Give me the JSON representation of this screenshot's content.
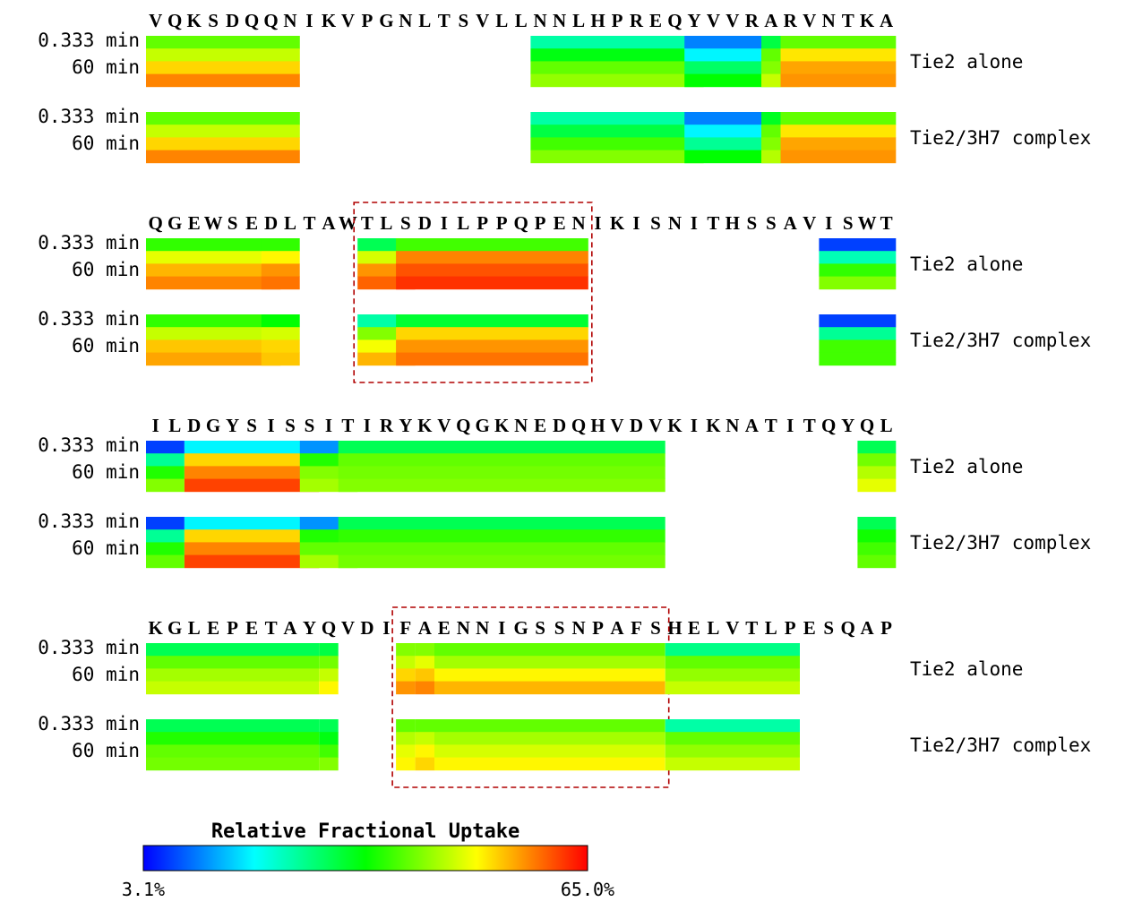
{
  "chart_data": {
    "type": "heatmap",
    "title": "",
    "colorbar": {
      "label": "Relative Fractional Uptake",
      "min_label": "3.1%",
      "max_label": "65.0%",
      "min": 3.1,
      "max": 65.0,
      "stops": [
        "#0000ff",
        "#00ffff",
        "#00ff00",
        "#ffff00",
        "#ff0000"
      ]
    },
    "time_labels": [
      "0.333 min",
      "60 min"
    ],
    "panels": [
      {
        "sequence": "VQKSDQQNIKVPGNLTSVLLNNLHPREQYVVRARVNTKA",
        "highlight": null,
        "states": [
          {
            "label": "Tie2 alone",
            "peptides": [
              {
                "start": 0,
                "end": 7,
                "values": [
                  40,
                  46,
                  52,
                  57
                ]
              },
              {
                "start": 20,
                "end": 28,
                "values": [
                  24,
                  33,
                  40,
                  43
                ]
              },
              {
                "start": 28,
                "end": 32,
                "values": [
                  11,
                  18,
                  28,
                  34
                ]
              },
              {
                "start": 32,
                "end": 33,
                "values": [
                  30,
                  40,
                  42,
                  46
                ]
              },
              {
                "start": 33,
                "end": 38,
                "values": [
                  40,
                  51,
                  55,
                  56
                ]
              }
            ]
          },
          {
            "label": "Tie2/3H7 complex",
            "peptides": [
              {
                "start": 0,
                "end": 7,
                "values": [
                  40,
                  46,
                  52,
                  57
                ]
              },
              {
                "start": 20,
                "end": 28,
                "values": [
                  24,
                  30,
                  38,
                  42
                ]
              },
              {
                "start": 28,
                "end": 32,
                "values": [
                  11,
                  18,
                  25,
                  34
                ]
              },
              {
                "start": 32,
                "end": 33,
                "values": [
                  32,
                  40,
                  42,
                  45
                ]
              },
              {
                "start": 33,
                "end": 38,
                "values": [
                  40,
                  51,
                  55,
                  56
                ]
              }
            ]
          }
        ]
      },
      {
        "sequence": "QGEWSEDLTAWTLSDILPPQPENIKISNITHSSAVISWT",
        "highlight": [
          11,
          22
        ],
        "states": [
          {
            "label": "Tie2 alone",
            "peptides": [
              {
                "start": 0,
                "end": 6,
                "values": [
                  37,
                  48,
                  54,
                  57
                ]
              },
              {
                "start": 6,
                "end": 7,
                "values": [
                  37,
                  50,
                  56,
                  58
                ]
              },
              {
                "start": 11,
                "end": 13,
                "values": [
                  29,
                  47,
                  56,
                  59
                ]
              },
              {
                "start": 13,
                "end": 22,
                "values": [
                  38,
                  57,
                  60,
                  62
                ]
              },
              {
                "start": 35,
                "end": 38,
                "values": [
                  7,
                  23,
                  37,
                  42
                ]
              }
            ]
          },
          {
            "label": "Tie2/3H7 complex",
            "peptides": [
              {
                "start": 0,
                "end": 6,
                "values": [
                  37,
                  46,
                  53,
                  55
                ]
              },
              {
                "start": 6,
                "end": 7,
                "values": [
                  34,
                  47,
                  52,
                  53
                ]
              },
              {
                "start": 11,
                "end": 13,
                "values": [
                  24,
                  42,
                  49,
                  54
                ]
              },
              {
                "start": 13,
                "end": 22,
                "values": [
                  31,
                  52,
                  56,
                  58
                ]
              },
              {
                "start": 35,
                "end": 38,
                "values": [
                  7,
                  25,
                  38,
                  38
                ]
              }
            ]
          }
        ]
      },
      {
        "sequence": "ILDGYSISSITIRYKVQGKNEDQHVDVKIKNATITQYQL",
        "highlight": null,
        "states": [
          {
            "label": "Tie2 alone",
            "peptides": [
              {
                "start": 0,
                "end": 1,
                "values": [
                  7,
                  25,
                  36,
                  42
                ]
              },
              {
                "start": 2,
                "end": 8,
                "values": [
                  18,
                  52,
                  57,
                  61
                ]
              },
              {
                "start": 8,
                "end": 10,
                "values": [
                  12,
                  36,
                  42,
                  44
                ]
              },
              {
                "start": 10,
                "end": 26,
                "values": [
                  29,
                  40,
                  41,
                  42
                ]
              },
              {
                "start": 37,
                "end": 38,
                "values": [
                  29,
                  41,
                  45,
                  48
                ]
              }
            ]
          },
          {
            "label": "Tie2/3H7 complex",
            "peptides": [
              {
                "start": 0,
                "end": 1,
                "values": [
                  7,
                  25,
                  36,
                  40
                ]
              },
              {
                "start": 2,
                "end": 8,
                "values": [
                  18,
                  52,
                  57,
                  61
                ]
              },
              {
                "start": 8,
                "end": 10,
                "values": [
                  12,
                  36,
                  40,
                  44
                ]
              },
              {
                "start": 10,
                "end": 26,
                "values": [
                  29,
                  37,
                  40,
                  41
                ]
              },
              {
                "start": 37,
                "end": 38,
                "values": [
                  29,
                  35,
                  38,
                  40
                ]
              }
            ]
          }
        ]
      },
      {
        "sequence": "KGLEPETAYQVDIFAENNIGSSNPAFSHELVTLPESQAP",
        "highlight": [
          13,
          26
        ],
        "states": [
          {
            "label": "Tie2 alone",
            "peptides": [
              {
                "start": 0,
                "end": 8,
                "values": [
                  29,
                  40,
                  44,
                  46
                ]
              },
              {
                "start": 9,
                "end": 9,
                "values": [
                  30,
                  41,
                  46,
                  50
                ]
              },
              {
                "start": 13,
                "end": 13,
                "values": [
                  42,
                  46,
                  52,
                  56
                ]
              },
              {
                "start": 14,
                "end": 14,
                "values": [
                  42,
                  48,
                  53,
                  57
                ]
              },
              {
                "start": 15,
                "end": 26,
                "values": [
                  40,
                  44,
                  50,
                  54
                ]
              },
              {
                "start": 27,
                "end": 33,
                "values": [
                  26,
                  40,
                  43,
                  46
                ]
              }
            ]
          },
          {
            "label": "Tie2/3H7 complex",
            "peptides": [
              {
                "start": 0,
                "end": 8,
                "values": [
                  29,
                  36,
                  40,
                  41
                ]
              },
              {
                "start": 9,
                "end": 9,
                "values": [
                  29,
                  33,
                  38,
                  42
                ]
              },
              {
                "start": 13,
                "end": 13,
                "values": [
                  40,
                  45,
                  48,
                  50
                ]
              },
              {
                "start": 14,
                "end": 14,
                "values": [
                  40,
                  46,
                  50,
                  52
                ]
              },
              {
                "start": 15,
                "end": 26,
                "values": [
                  40,
                  44,
                  47,
                  50
                ]
              },
              {
                "start": 27,
                "end": 33,
                "values": [
                  24,
                  40,
                  43,
                  46
                ]
              }
            ]
          }
        ]
      }
    ]
  }
}
